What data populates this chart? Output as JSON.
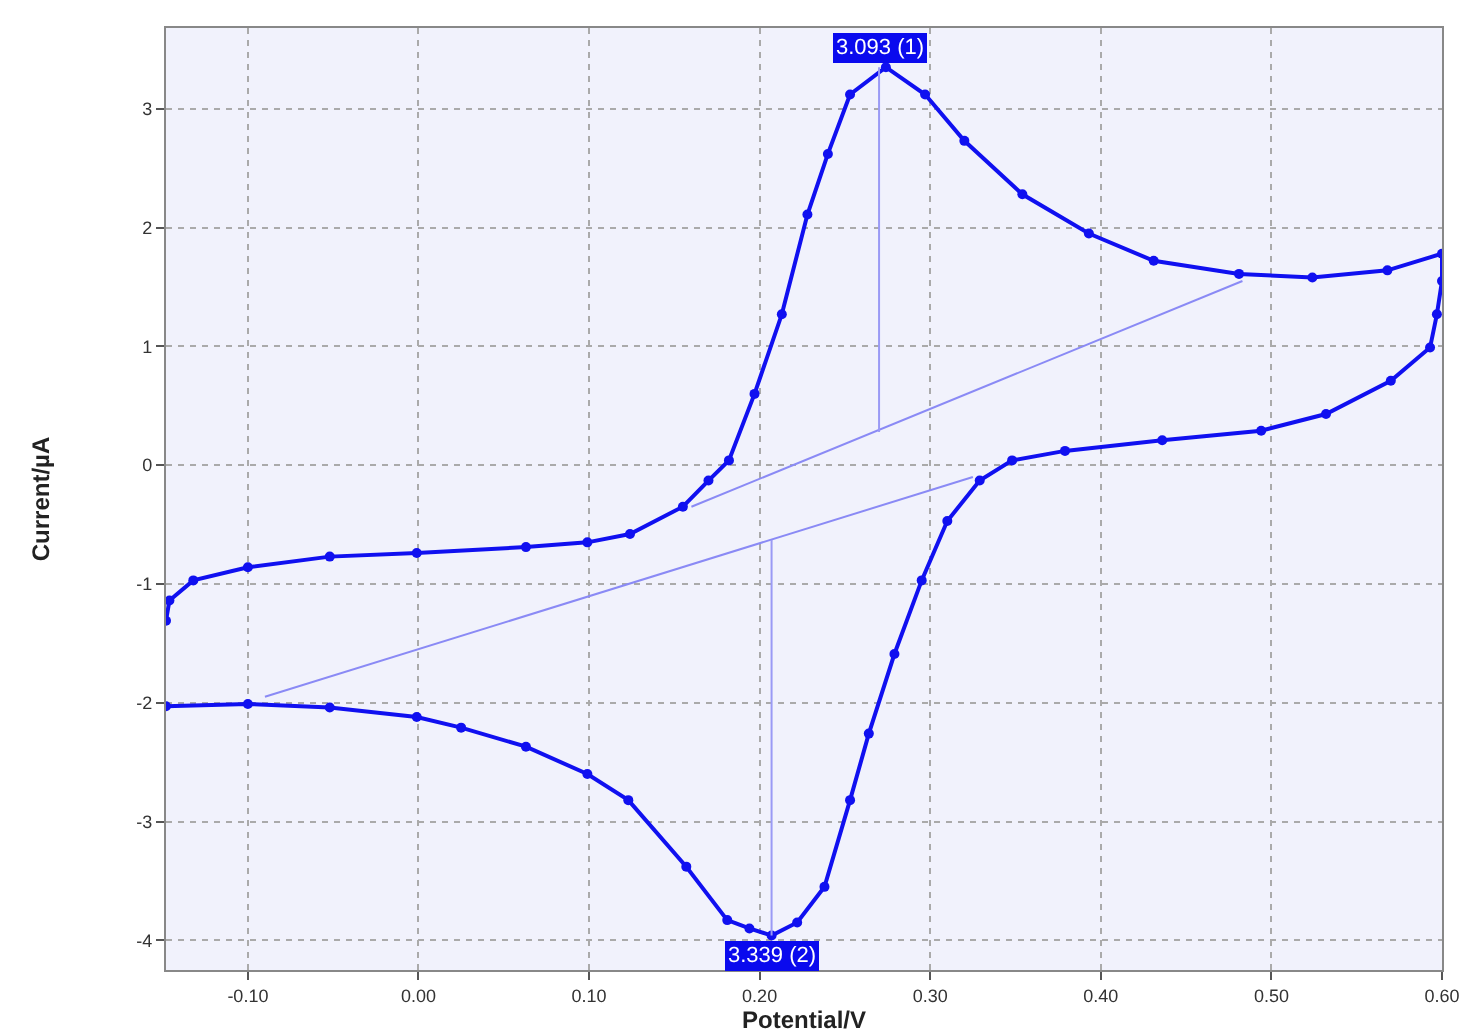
{
  "chart_data": {
    "type": "line",
    "xlabel": "Potential/V",
    "ylabel": "Current/µA",
    "xlim": [
      -0.148,
      0.6
    ],
    "ylim": [
      -4.25,
      3.68
    ],
    "xticks": [
      {
        "value": -0.1,
        "label": "-0.10"
      },
      {
        "value": 0,
        "label": "0.00"
      },
      {
        "value": 0.1,
        "label": "0.10"
      },
      {
        "value": 0.2,
        "label": "0.20"
      },
      {
        "value": 0.3,
        "label": "0.30"
      },
      {
        "value": 0.4,
        "label": "0.40"
      },
      {
        "value": 0.5,
        "label": "0.50"
      },
      {
        "value": 0.6,
        "label": "0.60"
      }
    ],
    "yticks": [
      -4,
      -3,
      -2,
      -1,
      0,
      1,
      2,
      3
    ],
    "grid": true,
    "marker": "circle",
    "line_style": "solid",
    "series": [
      {
        "color": "#1010f0",
        "x": [
          -0.148,
          -0.146,
          -0.132,
          -0.1,
          -0.052,
          -0.001,
          0.063,
          0.099,
          0.124,
          0.155,
          0.17,
          0.182,
          0.197,
          0.213,
          0.228,
          0.24,
          0.253,
          0.274,
          0.297,
          0.32,
          0.354,
          0.393,
          0.431,
          0.481,
          0.524,
          0.568,
          0.6,
          0.6,
          0.597,
          0.593,
          0.57,
          0.532,
          0.494,
          0.436,
          0.379,
          0.348,
          0.329,
          0.31,
          0.295,
          0.279,
          0.264,
          0.253,
          0.238,
          0.222,
          0.207,
          0.194,
          0.181,
          0.157,
          0.123,
          0.099,
          0.063,
          0.025,
          -0.001,
          -0.052,
          -0.1,
          -0.148
        ],
        "values": [
          -1.31,
          -1.14,
          -0.97,
          -0.86,
          -0.77,
          -0.74,
          -0.69,
          -0.65,
          -0.58,
          -0.35,
          -0.13,
          0.04,
          0.6,
          1.27,
          2.11,
          2.62,
          3.12,
          3.35,
          3.12,
          2.73,
          2.28,
          1.95,
          1.72,
          1.61,
          1.58,
          1.64,
          1.78,
          1.55,
          1.27,
          0.99,
          0.71,
          0.43,
          0.29,
          0.21,
          0.12,
          0.04,
          -0.13,
          -0.47,
          -0.97,
          -1.59,
          -2.26,
          -2.82,
          -3.55,
          -3.85,
          -3.96,
          -3.9,
          -3.83,
          -3.38,
          -2.82,
          -2.6,
          -2.37,
          -2.21,
          -2.12,
          -2.04,
          -2.01,
          -2.03
        ]
      },
      {
        "color": "#8a8af5",
        "marker": "none",
        "x": [
          0.16,
          0.483
        ],
        "values": [
          -0.35,
          1.55
        ]
      },
      {
        "color": "#8a8af5",
        "marker": "none",
        "x": [
          -0.09,
          0.325
        ],
        "values": [
          -1.95,
          -0.1
        ]
      },
      {
        "color": "#9a9af5",
        "marker": "none",
        "x": [
          0.27,
          0.27
        ],
        "values": [
          0.28,
          3.35
        ]
      },
      {
        "color": "#9a9af5",
        "marker": "none",
        "x": [
          0.207,
          0.207
        ],
        "values": [
          -0.63,
          -3.96
        ]
      }
    ],
    "annotations": [
      {
        "text": "3.093 (1)",
        "x": 0.27,
        "y": 3.35
      },
      {
        "text": "3.339 (2)",
        "x": 0.207,
        "y": -3.96
      }
    ]
  }
}
